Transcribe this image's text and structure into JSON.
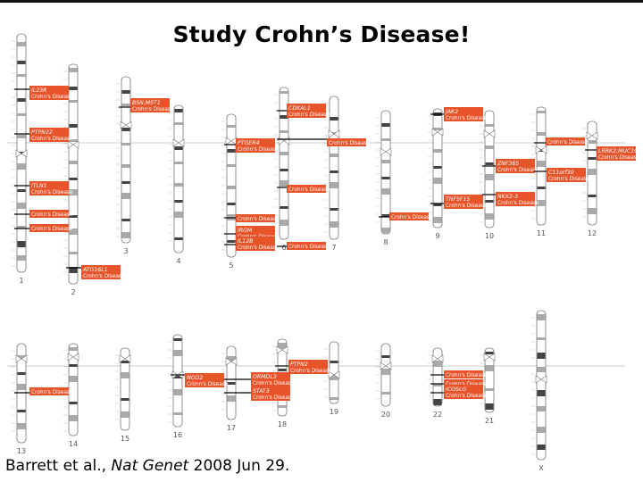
{
  "title": "Study Crohn’s Disease!",
  "citation": {
    "authors": "Barrett et al.,",
    "journal": "Nat Genet",
    "date": "2008 Jun 29."
  },
  "colors": {
    "label_fill": "#e8542a",
    "label_text": "#ffffff",
    "chromosome_band": "#555555",
    "centromere": "#888888"
  },
  "chromosomes": [
    "1",
    "2",
    "3",
    "4",
    "5",
    "6",
    "7",
    "8",
    "9",
    "10",
    "11",
    "12",
    "13",
    "14",
    "15",
    "16",
    "17",
    "18",
    "19",
    "20",
    "21",
    "22",
    "X"
  ],
  "loci": [
    {
      "chrom": "1",
      "gene": "IL23R",
      "disease": "Crohn's Disease"
    },
    {
      "chrom": "1",
      "gene": "PTPN22",
      "disease": "Crohn's Disease"
    },
    {
      "chrom": "1",
      "gene": "ITLN1",
      "disease": "Crohn's Disease"
    },
    {
      "chrom": "1",
      "gene": "",
      "disease": "Crohn's Disease"
    },
    {
      "chrom": "1",
      "gene": "",
      "disease": "Crohn's Disease"
    },
    {
      "chrom": "2",
      "gene": "ATG16L1",
      "disease": "Crohn's Disease"
    },
    {
      "chrom": "3",
      "gene": "BSN,MST1",
      "disease": "Crohn's Disease"
    },
    {
      "chrom": "5",
      "gene": "PTGER4",
      "disease": "Crohn's Disease"
    },
    {
      "chrom": "5",
      "gene": "",
      "disease": "Crohn's Disease"
    },
    {
      "chrom": "5",
      "gene": "IRGM",
      "disease": "Crohn's Disease"
    },
    {
      "chrom": "5",
      "gene": "IL12B",
      "disease": "Crohn's Disease"
    },
    {
      "chrom": "6",
      "gene": "CDKAL1",
      "disease": "Crohn's Disease"
    },
    {
      "chrom": "6",
      "gene": "",
      "disease": "Crohn's Disease"
    },
    {
      "chrom": "6",
      "gene": "",
      "disease": "Crohn's Disease"
    },
    {
      "chrom": "6",
      "gene": "",
      "disease": "Crohn's Disease"
    },
    {
      "chrom": "8",
      "gene": "",
      "disease": "Crohn's Disease"
    },
    {
      "chrom": "9",
      "gene": "JAK2",
      "disease": "Crohn's Disease"
    },
    {
      "chrom": "9",
      "gene": "TNFSF15",
      "disease": "Crohn's Disease"
    },
    {
      "chrom": "10",
      "gene": "NKX2-3",
      "disease": "Crohn's Disease"
    },
    {
      "chrom": "10",
      "gene": "ZNF365",
      "disease": "Crohn's Disease"
    },
    {
      "chrom": "10",
      "gene": "",
      "disease": "Crohn's Disease"
    },
    {
      "chrom": "10",
      "gene": "C11orf30",
      "disease": "Crohn's Disease"
    },
    {
      "chrom": "12",
      "gene": "LRRK2,MUC19",
      "disease": "Crohn's Disease"
    },
    {
      "chrom": "13",
      "gene": "",
      "disease": "Crohn's Disease"
    },
    {
      "chrom": "16",
      "gene": "NOD2",
      "disease": "Crohn's Disease"
    },
    {
      "chrom": "17",
      "gene": "ORMDL3",
      "disease": "Crohn's Disease"
    },
    {
      "chrom": "17",
      "gene": "STAT3",
      "disease": "Crohn's Disease"
    },
    {
      "chrom": "18",
      "gene": "PTPN2",
      "disease": "Crohn's Disease"
    },
    {
      "chrom": "21",
      "gene": "",
      "disease": "Crohn's Disease"
    },
    {
      "chrom": "21",
      "gene": "",
      "disease": "Crohn's Disease"
    },
    {
      "chrom": "21",
      "gene": "ICOSLG",
      "disease": "Crohn's Disease"
    }
  ]
}
